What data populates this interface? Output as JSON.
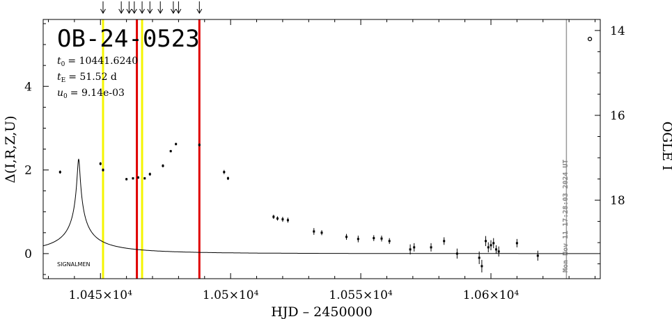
{
  "chart_data": {
    "type": "scatter",
    "title": "OB-24-0523",
    "xlabel": "HJD – 2450000",
    "ylabel_left": "Δ(I,R,Z,U)",
    "ylabel_right": "OGLE I",
    "xlim": [
      10428,
      10642
    ],
    "ylim": [
      -0.6,
      5.6
    ],
    "right_ylim": [
      19.85,
      13.74
    ],
    "x_ticks": [
      {
        "value": 10450,
        "label": "1.045×10⁴"
      },
      {
        "value": 10500,
        "label": "1.05×10⁴"
      },
      {
        "value": 10550,
        "label": "1.055×10⁴"
      },
      {
        "value": 10600,
        "label": "1.06×10⁴"
      }
    ],
    "y_ticks": [
      {
        "value": 0,
        "label": "0"
      },
      {
        "value": 2,
        "label": "2"
      },
      {
        "value": 4,
        "label": "4"
      }
    ],
    "right_y_ticks": [
      {
        "value": 14,
        "label": "14"
      },
      {
        "value": 16,
        "label": "16"
      },
      {
        "value": 18,
        "label": "18"
      }
    ],
    "params": {
      "t0_label": "t",
      "t0_sub": "0",
      "t0_value": "= 10441.6240",
      "tE_label": "t",
      "tE_sub": "E",
      "tE_value": "= 51.52 d",
      "u0_label": "u",
      "u0_sub": "0",
      "u0_value": "= 9.14e-03"
    },
    "model": {
      "t0": 10441.624,
      "tE": 51.52,
      "u0": 0.00914,
      "fs": 0.065
    },
    "yellow_lines": [
      10451.0,
      10466.0
    ],
    "red_lines": [
      10464.0,
      10488.0
    ],
    "gray_line": 10629.0,
    "arrows": [
      10451,
      10458,
      10461,
      10463,
      10466,
      10469,
      10473,
      10478,
      10480,
      10488
    ],
    "points": [
      {
        "x": 10434.5,
        "y": 1.95,
        "err": 0.04
      },
      {
        "x": 10450.0,
        "y": 2.15,
        "err": 0.04
      },
      {
        "x": 10451.0,
        "y": 2.0,
        "err": 0.04
      },
      {
        "x": 10460.0,
        "y": 1.78,
        "err": 0.03
      },
      {
        "x": 10462.5,
        "y": 1.8,
        "err": 0.03
      },
      {
        "x": 10464.5,
        "y": 1.82,
        "err": 0.03
      },
      {
        "x": 10467.0,
        "y": 1.8,
        "err": 0.03
      },
      {
        "x": 10469.0,
        "y": 1.9,
        "err": 0.04
      },
      {
        "x": 10474.0,
        "y": 2.1,
        "err": 0.04
      },
      {
        "x": 10477.0,
        "y": 2.45,
        "err": 0.03
      },
      {
        "x": 10479.0,
        "y": 2.62,
        "err": 0.03
      },
      {
        "x": 10488.0,
        "y": 2.6,
        "err": 0.04
      },
      {
        "x": 10497.5,
        "y": 1.95,
        "err": 0.05
      },
      {
        "x": 10499.0,
        "y": 1.8,
        "err": 0.04
      },
      {
        "x": 10516.5,
        "y": 0.88,
        "err": 0.05
      },
      {
        "x": 10518.0,
        "y": 0.84,
        "err": 0.05
      },
      {
        "x": 10520.0,
        "y": 0.82,
        "err": 0.06
      },
      {
        "x": 10522.0,
        "y": 0.8,
        "err": 0.06
      },
      {
        "x": 10532.0,
        "y": 0.53,
        "err": 0.08
      },
      {
        "x": 10535.0,
        "y": 0.5,
        "err": 0.06
      },
      {
        "x": 10544.5,
        "y": 0.4,
        "err": 0.07
      },
      {
        "x": 10549.0,
        "y": 0.35,
        "err": 0.08
      },
      {
        "x": 10555.0,
        "y": 0.37,
        "err": 0.07
      },
      {
        "x": 10558.0,
        "y": 0.36,
        "err": 0.07
      },
      {
        "x": 10561.0,
        "y": 0.3,
        "err": 0.07
      },
      {
        "x": 10569.0,
        "y": 0.1,
        "err": 0.12
      },
      {
        "x": 10570.5,
        "y": 0.15,
        "err": 0.1
      },
      {
        "x": 10577.0,
        "y": 0.15,
        "err": 0.1
      },
      {
        "x": 10582.0,
        "y": 0.3,
        "err": 0.09
      },
      {
        "x": 10587.0,
        "y": 0.0,
        "err": 0.12
      },
      {
        "x": 10595.5,
        "y": -0.1,
        "err": 0.15
      },
      {
        "x": 10596.5,
        "y": -0.3,
        "err": 0.15
      },
      {
        "x": 10598.0,
        "y": 0.3,
        "err": 0.12
      },
      {
        "x": 10599.0,
        "y": 0.15,
        "err": 0.12
      },
      {
        "x": 10600.0,
        "y": 0.2,
        "err": 0.12
      },
      {
        "x": 10601.0,
        "y": 0.25,
        "err": 0.12
      },
      {
        "x": 10602.0,
        "y": 0.1,
        "err": 0.1
      },
      {
        "x": 10603.0,
        "y": 0.05,
        "err": 0.12
      },
      {
        "x": 10610.0,
        "y": 0.25,
        "err": 0.1
      },
      {
        "x": 10618.0,
        "y": -0.05,
        "err": 0.12
      }
    ],
    "open_point": {
      "x": 10638.0,
      "right_y": 14.2
    },
    "small_label": "SIGNALMEN",
    "timestamp": "Mon Nov 11 17:28:03 2024 UT"
  }
}
